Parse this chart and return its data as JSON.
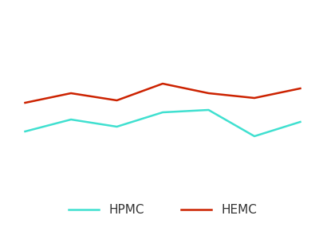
{
  "hpmc_x": [
    0,
    1,
    2,
    3,
    4,
    5,
    6
  ],
  "hpmc_y": [
    4.0,
    4.5,
    4.2,
    4.8,
    4.9,
    3.8,
    4.4
  ],
  "hemc_x": [
    0,
    1,
    2,
    3,
    4,
    5,
    6
  ],
  "hemc_y": [
    5.2,
    5.6,
    5.3,
    6.0,
    5.6,
    5.4,
    5.8
  ],
  "hpmc_color": "#40e0d0",
  "hemc_color": "#cc2200",
  "hpmc_label": "HPMC",
  "hemc_label": "HEMC",
  "linewidth": 1.8,
  "background_color": "#ffffff",
  "legend_fontsize": 11,
  "ylim": [
    0.0,
    9.0
  ],
  "xlim": [
    -0.2,
    6.2
  ]
}
